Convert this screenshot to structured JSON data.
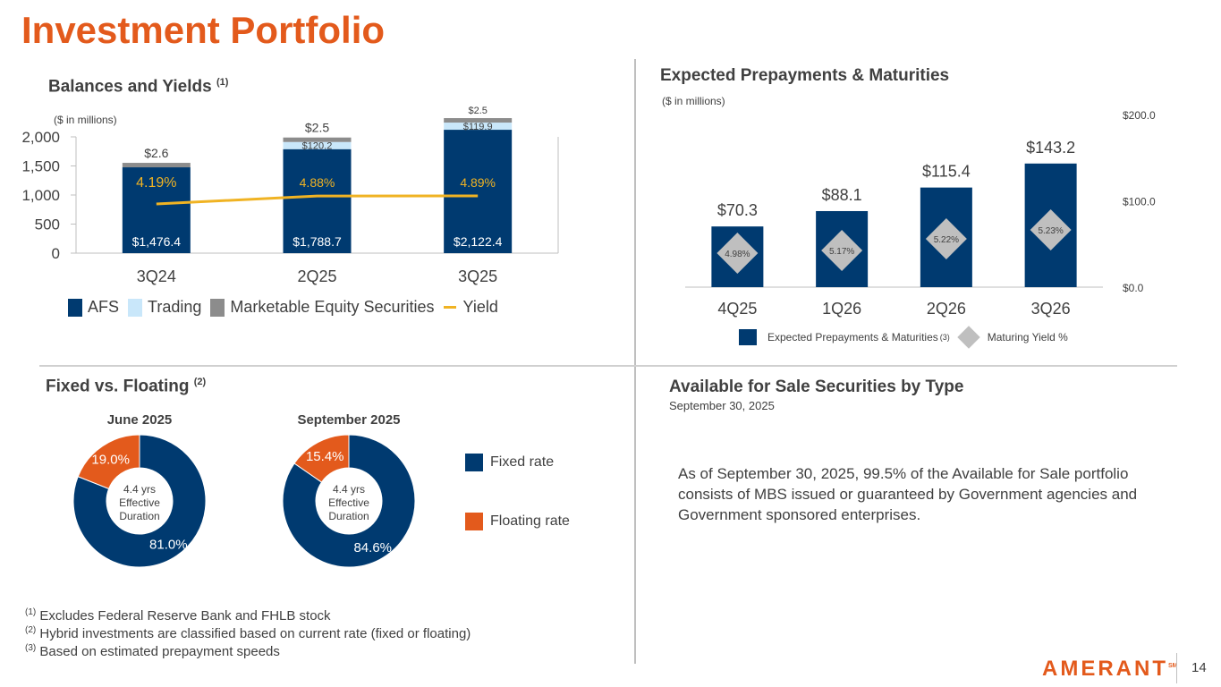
{
  "title": "Investment Portfolio",
  "colors": {
    "accent": "#E35A1C",
    "navy": "#003A70",
    "light_blue": "#C9E7FA",
    "gray": "#8C8C8C",
    "yield": "#F0B323",
    "diamond": "#BFBFBF"
  },
  "balances": {
    "title": "Balances and Yields",
    "title_sup": "(1)",
    "units": "($ in millions)",
    "legend": [
      "AFS",
      "Trading",
      "Marketable Equity Securities",
      "Yield"
    ]
  },
  "prepay": {
    "title": "Expected Prepayments & Maturities",
    "units": "($ in millions)",
    "legend_bar": "Expected Prepayments & Maturities",
    "legend_bar_sup": "(3)",
    "legend_diamond": "Maturing Yield %"
  },
  "fixed_floating": {
    "title": "Fixed vs. Floating",
    "title_sup": "(2)",
    "legend": [
      "Fixed rate",
      "Floating rate"
    ]
  },
  "afs": {
    "title": "Available for Sale Securities by Type",
    "subtitle": "September 30, 2025",
    "text": "As of September 30, 2025, 99.5% of the Available for Sale portfolio consists of MBS issued or guaranteed by Government agencies and Government sponsored enterprises."
  },
  "footnotes": [
    {
      "sup": "(1)",
      "text": " Excludes Federal Reserve Bank and FHLB stock"
    },
    {
      "sup": "(2)",
      "text": " Hybrid investments are classified based on current rate (fixed or floating)"
    },
    {
      "sup": "(3)",
      "text": " Based on estimated prepayment speeds"
    }
  ],
  "logo": "AMERANT",
  "logo_mark": "SM",
  "page_number": "14",
  "chart_data": [
    {
      "type": "bar",
      "stacked": true,
      "title": "Balances and Yields",
      "categories": [
        "3Q24",
        "2Q25",
        "3Q25"
      ],
      "series": [
        {
          "name": "AFS",
          "values": [
            1476.4,
            1788.7,
            2122.4
          ],
          "labels": [
            "$1,476.4",
            "$1,788.7",
            "$2,122.4"
          ]
        },
        {
          "name": "Trading",
          "values": [
            0,
            120.2,
            119.9
          ],
          "labels": [
            "",
            "$120.2",
            "$119.9"
          ]
        },
        {
          "name": "Marketable Equity Securities",
          "values": [
            2.6,
            2.5,
            2.5
          ],
          "labels": [
            "$2.6",
            "$2.5",
            "$2.5"
          ]
        }
      ],
      "line": {
        "name": "Yield",
        "values": [
          4.19,
          4.88,
          4.89
        ],
        "labels": [
          "4.19%",
          "4.88%",
          "4.89%"
        ]
      },
      "yticks": [
        "0",
        "500",
        "1,000",
        "1,500",
        "2,000"
      ],
      "ytick_values": [
        0,
        500,
        1000,
        1500,
        2000
      ],
      "ylim": [
        0,
        2000
      ]
    },
    {
      "type": "bar",
      "title": "Expected Prepayments & Maturities",
      "categories": [
        "4Q25",
        "1Q26",
        "2Q26",
        "3Q26"
      ],
      "values": [
        70.3,
        88.1,
        115.4,
        143.2
      ],
      "value_labels": [
        "$70.3",
        "$88.1",
        "$115.4",
        "$143.2"
      ],
      "yield_series": {
        "name": "Maturing Yield %",
        "labels": [
          "4.98%",
          "5.17%",
          "5.22%",
          "5.23%"
        ]
      },
      "ytick_values": [
        0,
        100,
        200
      ],
      "yticks": [
        "$0.0",
        "$100.0",
        "$200.0"
      ],
      "ylim": [
        0,
        200
      ]
    },
    {
      "type": "pie",
      "donut": true,
      "charts": [
        {
          "title": "June 2025",
          "slices": [
            {
              "name": "Fixed rate",
              "value": 81.0,
              "label": "81.0%"
            },
            {
              "name": "Floating rate",
              "value": 19.0,
              "label": "19.0%"
            }
          ],
          "center": [
            "4.4 yrs",
            "Effective",
            "Duration"
          ]
        },
        {
          "title": "September 2025",
          "slices": [
            {
              "name": "Fixed rate",
              "value": 84.6,
              "label": "84.6%"
            },
            {
              "name": "Floating rate",
              "value": 15.4,
              "label": "15.4%"
            }
          ],
          "center": [
            "4.4 yrs",
            "Effective",
            "Duration"
          ]
        }
      ]
    }
  ]
}
